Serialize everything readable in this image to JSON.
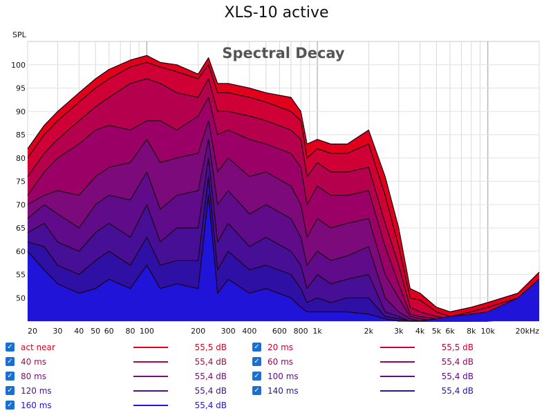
{
  "title": "XLS-10 active",
  "chart_data": {
    "type": "area",
    "title": "Spectral Decay",
    "ylabel": "SPL",
    "x_scale": "log",
    "xlim": [
      20,
      20000
    ],
    "ylim": [
      45,
      105
    ],
    "y_ticks": [
      50,
      55,
      60,
      65,
      70,
      75,
      80,
      85,
      90,
      95,
      100
    ],
    "x_ticks": [
      {
        "v": 20,
        "label": "20"
      },
      {
        "v": 30,
        "label": "30"
      },
      {
        "v": 40,
        "label": "40"
      },
      {
        "v": 50,
        "label": "50"
      },
      {
        "v": 60,
        "label": "60"
      },
      {
        "v": 80,
        "label": "80"
      },
      {
        "v": 100,
        "label": "100"
      },
      {
        "v": 200,
        "label": "200"
      },
      {
        "v": 300,
        "label": "300"
      },
      {
        "v": 400,
        "label": "400"
      },
      {
        "v": 600,
        "label": "600"
      },
      {
        "v": 800,
        "label": "800"
      },
      {
        "v": 1000,
        "label": "1k"
      },
      {
        "v": 2000,
        "label": "2k"
      },
      {
        "v": 3000,
        "label": "3k"
      },
      {
        "v": 4000,
        "label": "4k"
      },
      {
        "v": 5000,
        "label": "5k"
      },
      {
        "v": 6000,
        "label": "6k"
      },
      {
        "v": 8000,
        "label": "8k"
      },
      {
        "v": 10000,
        "label": "10k"
      },
      {
        "v": 20000,
        "label": "20kHz"
      }
    ],
    "series": [
      {
        "name": "act near",
        "color": "#e0001c",
        "x": [
          20,
          25,
          30,
          40,
          50,
          60,
          80,
          100,
          120,
          150,
          200,
          230,
          260,
          300,
          400,
          500,
          700,
          800,
          870,
          1000,
          1200,
          1500,
          2000,
          2500,
          3000,
          3500,
          4000,
          5000,
          6000,
          8000,
          10000,
          15000,
          20000
        ],
        "y": [
          82,
          87,
          90,
          94,
          97,
          99,
          101,
          102,
          100.5,
          100,
          98,
          101.5,
          96,
          96,
          95,
          94,
          93,
          90,
          83,
          84,
          83,
          83,
          86,
          76,
          65,
          52,
          51,
          48,
          47,
          48,
          49,
          51,
          55.5
        ]
      },
      {
        "name": "20 ms",
        "color": "#cf0035",
        "x": [
          20,
          25,
          30,
          40,
          50,
          60,
          80,
          100,
          120,
          150,
          200,
          230,
          260,
          300,
          400,
          500,
          700,
          800,
          870,
          1000,
          1200,
          1500,
          2000,
          2500,
          3000,
          3500,
          4000,
          5000,
          6000,
          8000,
          10000,
          15000,
          20000
        ],
        "y": [
          80,
          85,
          88,
          92,
          95,
          97,
          99.5,
          100.5,
          99.5,
          98.5,
          97,
          100,
          94,
          94,
          93,
          92,
          90,
          88,
          80,
          82,
          81,
          81,
          83,
          72,
          61,
          50,
          49.5,
          47,
          46,
          47,
          48,
          50,
          54
        ]
      },
      {
        "name": "40 ms",
        "color": "#b5004e",
        "x": [
          20,
          25,
          30,
          40,
          50,
          60,
          80,
          100,
          120,
          150,
          200,
          230,
          260,
          300,
          400,
          500,
          700,
          800,
          870,
          1000,
          1200,
          1500,
          2000,
          2500,
          3000,
          3500,
          4000,
          5000,
          6000,
          8000,
          10000,
          15000,
          20000
        ],
        "y": [
          76,
          81,
          84,
          88,
          91,
          93,
          96,
          97,
          96,
          94,
          93,
          97,
          90,
          90,
          89,
          88,
          86,
          84,
          76,
          79,
          77,
          77,
          78,
          66,
          57,
          48,
          47,
          46,
          45.5,
          46,
          47,
          49,
          52
        ]
      },
      {
        "name": "60 ms",
        "color": "#9a0065",
        "x": [
          20,
          25,
          30,
          40,
          50,
          60,
          80,
          100,
          120,
          150,
          200,
          230,
          260,
          300,
          400,
          500,
          700,
          800,
          870,
          1000,
          1200,
          1500,
          2000,
          2500,
          3000,
          3500,
          4000,
          5000,
          6000,
          8000,
          10000,
          15000,
          20000
        ],
        "y": [
          72,
          77,
          80,
          83,
          86,
          87,
          86,
          88,
          88,
          86,
          89,
          93,
          85,
          86,
          84,
          83,
          81,
          78,
          70,
          74,
          72,
          72,
          73,
          61,
          53,
          46.5,
          46,
          45.5,
          45,
          45.5,
          46,
          48,
          51
        ]
      },
      {
        "name": "80 ms",
        "color": "#7d0a7a",
        "x": [
          20,
          25,
          30,
          40,
          50,
          60,
          80,
          100,
          120,
          150,
          200,
          230,
          260,
          300,
          400,
          500,
          700,
          800,
          870,
          1000,
          1200,
          1500,
          2000,
          2500,
          3000,
          3500,
          4000,
          5000,
          6000,
          8000,
          10000,
          15000,
          20000
        ],
        "y": [
          70,
          72,
          73,
          72,
          76,
          78,
          79,
          84,
          79,
          80,
          81,
          88,
          77,
          80,
          76,
          77,
          74,
          70,
          63,
          67,
          65,
          66,
          67,
          55,
          50,
          46,
          45.5,
          45,
          45,
          45,
          45.5,
          47,
          50
        ]
      },
      {
        "name": "100 ms",
        "color": "#600c8a",
        "x": [
          20,
          25,
          30,
          40,
          50,
          60,
          80,
          100,
          120,
          150,
          200,
          230,
          260,
          300,
          400,
          500,
          700,
          800,
          870,
          1000,
          1200,
          1500,
          2000,
          2500,
          3000,
          3500,
          4000,
          5000,
          6000,
          8000,
          10000,
          15000,
          20000
        ],
        "y": [
          67,
          70,
          68,
          65,
          70,
          72,
          71,
          77,
          69,
          72,
          73,
          84,
          70,
          73,
          68,
          70,
          67,
          63,
          57,
          60,
          58,
          59,
          61,
          50,
          47,
          45.5,
          45,
          45,
          45,
          45,
          45,
          46,
          49
        ]
      },
      {
        "name": "120 ms",
        "color": "#460f96",
        "x": [
          20,
          25,
          30,
          40,
          50,
          60,
          80,
          100,
          120,
          150,
          200,
          230,
          260,
          300,
          400,
          500,
          700,
          800,
          870,
          1000,
          1200,
          1500,
          2000,
          2500,
          3000,
          3500,
          4000,
          5000,
          6000,
          8000,
          10000,
          15000,
          20000
        ],
        "y": [
          64,
          66,
          62,
          60,
          64,
          66,
          63,
          70,
          62,
          65,
          65,
          80,
          62,
          66,
          61,
          63,
          60,
          57,
          52,
          55,
          53,
          54,
          55,
          47,
          46,
          45,
          45,
          45,
          45,
          45,
          45,
          45.5,
          48.5
        ]
      },
      {
        "name": "140 ms",
        "color": "#2e10a4",
        "x": [
          20,
          25,
          30,
          40,
          50,
          60,
          80,
          100,
          120,
          150,
          200,
          230,
          260,
          300,
          400,
          500,
          700,
          800,
          870,
          1000,
          1200,
          1500,
          2000,
          2500,
          3000,
          3500,
          4000,
          5000,
          6000,
          8000,
          10000,
          15000,
          20000
        ],
        "y": [
          62,
          61,
          57,
          55,
          58,
          60,
          57,
          63,
          57,
          58,
          58,
          76,
          56,
          60,
          56,
          57,
          55,
          52,
          49,
          50,
          49,
          50,
          50,
          46,
          45.5,
          45,
          45,
          45,
          45,
          45,
          45,
          45.5,
          48
        ]
      },
      {
        "name": "160 ms",
        "color": "#1f14d8",
        "x": [
          20,
          25,
          30,
          40,
          50,
          60,
          80,
          100,
          120,
          150,
          200,
          230,
          260,
          300,
          400,
          500,
          700,
          800,
          870,
          1000,
          1200,
          1500,
          2000,
          2500,
          3000,
          3500,
          4000,
          5000,
          6000,
          8000,
          10000,
          15000,
          20000
        ],
        "y": [
          60,
          56,
          53,
          51,
          52,
          54,
          52,
          57,
          52,
          53,
          52,
          72,
          51,
          54,
          51,
          52,
          50,
          48,
          47,
          47,
          47,
          47,
          46.5,
          45.5,
          45,
          45,
          45,
          45.5,
          46,
          46.5,
          47,
          50,
          54
        ]
      }
    ]
  },
  "legend": [
    {
      "name": "act near",
      "value": "55,5 dB",
      "color": "#e0001c",
      "checked": "✓"
    },
    {
      "name": "20 ms",
      "value": "55,5 dB",
      "color": "#cf0035",
      "checked": "✓"
    },
    {
      "name": "40 ms",
      "value": "55,4 dB",
      "color": "#b5004e",
      "checked": "✓"
    },
    {
      "name": "60 ms",
      "value": "55,4 dB",
      "color": "#9a0065",
      "checked": "✓"
    },
    {
      "name": "80 ms",
      "value": "55,4 dB",
      "color": "#7d0a7a",
      "checked": "✓"
    },
    {
      "name": "100 ms",
      "value": "55,4 dB",
      "color": "#600c8a",
      "checked": "✓"
    },
    {
      "name": "120 ms",
      "value": "55,4 dB",
      "color": "#460f96",
      "checked": "✓"
    },
    {
      "name": "140 ms",
      "value": "55,4 dB",
      "color": "#2e10a4",
      "checked": "✓"
    },
    {
      "name": "160 ms",
      "value": "55,4 dB",
      "color": "#1f14d8",
      "checked": "✓"
    }
  ]
}
